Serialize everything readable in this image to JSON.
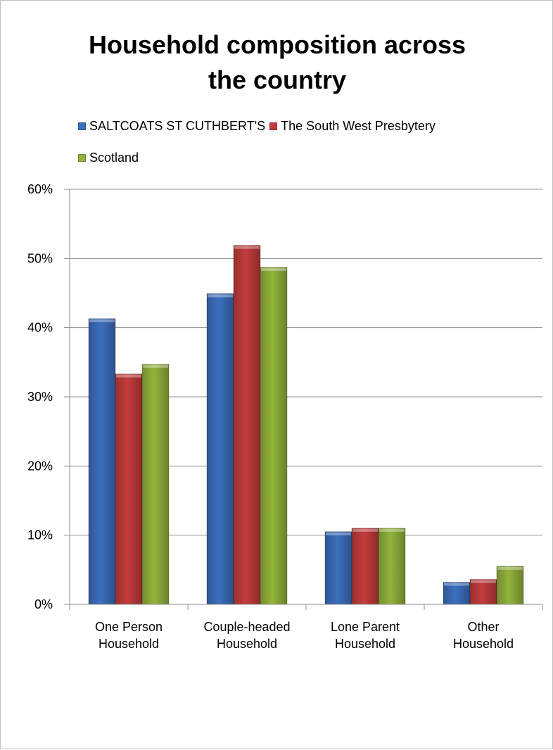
{
  "chart_data": {
    "type": "bar",
    "title_lines": [
      "Household composition across",
      "the country"
    ],
    "categories": [
      [
        "One Person",
        "Household"
      ],
      [
        "Couple-headed",
        "Household"
      ],
      [
        "Lone Parent",
        "Household"
      ],
      [
        "Other",
        "Household"
      ]
    ],
    "series": [
      {
        "name": "SALTCOATS ST CUTHBERT'S",
        "color": "#3d6fbf",
        "values": [
          41.3,
          44.9,
          10.5,
          3.2
        ]
      },
      {
        "name": "The South West Presbytery",
        "color": "#c43c3c",
        "values": [
          33.3,
          51.9,
          11.0,
          3.6
        ]
      },
      {
        "name": "Scotland",
        "color": "#93b43c",
        "values": [
          34.7,
          48.7,
          11.0,
          5.5
        ]
      }
    ],
    "yticks": [
      "0%",
      "10%",
      "20%",
      "30%",
      "40%",
      "50%",
      "60%"
    ],
    "ylim": [
      0,
      60
    ],
    "grid": true,
    "legend_position": "top",
    "style": "3d-gradient-bars"
  }
}
